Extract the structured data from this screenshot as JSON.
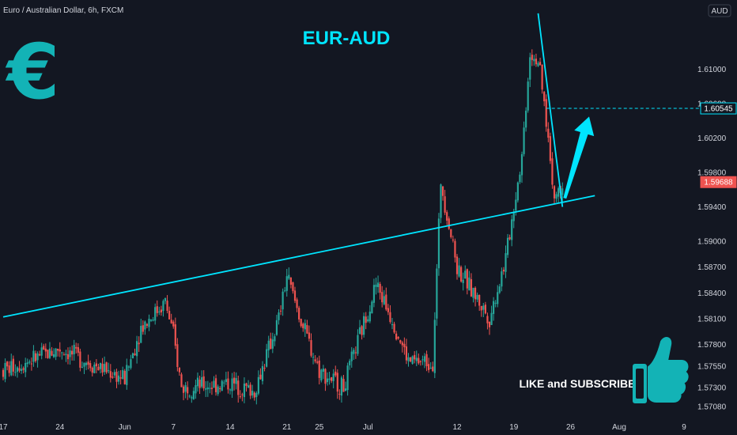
{
  "header": {
    "symbol": "Euro / Australian Dollar, 6h, FXCM",
    "currency": "AUD"
  },
  "overlay": {
    "title": "EUR-AUD",
    "cta": "LIKE and SUBSCRIBE",
    "euro_symbol": "€",
    "logo_icon": "euro-symbol-icon",
    "thumb_icon": "thumbs-up-icon"
  },
  "colors": {
    "background": "#131722",
    "accent": "#00e5ff",
    "logo": "#13b3b6",
    "bull": "#26a69a",
    "bear": "#ef5350",
    "text": "#d1d4dc"
  },
  "chart_data": {
    "type": "candlestick",
    "title": "EUR-AUD",
    "ylim": [
      1.5695,
      1.6175
    ],
    "y_ticks": [
      "1.61000",
      "1.60600",
      "1.60200",
      "1.59800",
      "1.59400",
      "1.59000",
      "1.58700",
      "1.58400",
      "1.58100",
      "1.57800",
      "1.57550",
      "1.57300",
      "1.57080"
    ],
    "x_ticks": [
      "17",
      "24",
      "Jun",
      "7",
      "14",
      "21",
      "25",
      "Jul",
      "12",
      "19",
      "26",
      "Aug",
      "9"
    ],
    "price_tags": [
      {
        "label": "1.60545",
        "value": 1.60545,
        "style": "outline"
      },
      {
        "label": "1.59688",
        "value": 1.59688,
        "style": "red"
      }
    ],
    "anchors": [
      {
        "date": "May 17",
        "price": 1.575
      },
      {
        "date": "May 24",
        "price": 1.5775
      },
      {
        "date": "Jun 01",
        "price": 1.574
      },
      {
        "date": "Jun 03",
        "price": 1.58
      },
      {
        "date": "Jun 06",
        "price": 1.583
      },
      {
        "date": "Jun 07",
        "price": 1.579
      },
      {
        "date": "Jun 08",
        "price": 1.573
      },
      {
        "date": "Jun 14",
        "price": 1.5735
      },
      {
        "date": "Jun 17",
        "price": 1.5725
      },
      {
        "date": "Jun 20",
        "price": 1.581
      },
      {
        "date": "Jun 21",
        "price": 1.586
      },
      {
        "date": "Jun 23",
        "price": 1.58
      },
      {
        "date": "Jun 25",
        "price": 1.575
      },
      {
        "date": "Jun 28",
        "price": 1.573
      },
      {
        "date": "Jun 30",
        "price": 1.579
      },
      {
        "date": "Jul 02",
        "price": 1.585
      },
      {
        "date": "Jul 04",
        "price": 1.581
      },
      {
        "date": "Jul 06",
        "price": 1.576
      },
      {
        "date": "Jul 09",
        "price": 1.576
      },
      {
        "date": "Jul 10",
        "price": 1.597
      },
      {
        "date": "Jul 12",
        "price": 1.587
      },
      {
        "date": "Jul 14",
        "price": 1.584
      },
      {
        "date": "Jul 16",
        "price": 1.581
      },
      {
        "date": "Jul 18",
        "price": 1.588
      },
      {
        "date": "Jul 20",
        "price": 1.6
      },
      {
        "date": "Jul 21",
        "price": 1.612
      },
      {
        "date": "Jul 22",
        "price": 1.611
      },
      {
        "date": "Jul 23",
        "price": 1.604
      },
      {
        "date": "Jul 24",
        "price": 1.595
      },
      {
        "date": "Jul 25",
        "price": 1.5969
      }
    ],
    "trendlines": [
      {
        "name": "support",
        "from": {
          "date": "May 17",
          "price": 1.5812
        },
        "to": {
          "date": "Jul 29",
          "price": 1.5953
        }
      },
      {
        "name": "resistance",
        "from": {
          "date": "Jul 22",
          "price": 1.6165
        },
        "to": {
          "date": "Jul 25",
          "price": 1.594
        }
      }
    ],
    "target": {
      "price": 1.60545,
      "arrow_from": {
        "date": "Jul 25",
        "price": 1.595
      },
      "arrow_to": {
        "date": "Jul 28",
        "price": 1.6045
      }
    }
  }
}
